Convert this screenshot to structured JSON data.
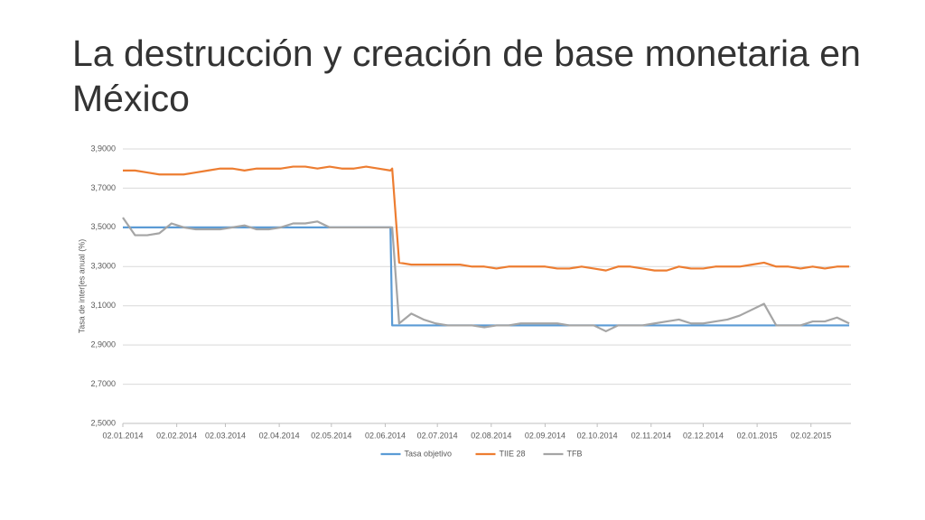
{
  "chart_data": {
    "type": "line",
    "title": "La destrucción y creación de base monetaria en México",
    "y_label": "Tasa de inter[es anual (%)",
    "x": [
      "02.01.2014",
      "09.01.2014",
      "16.01.2014",
      "23.01.2014",
      "30.01.2014",
      "06.02.2014",
      "13.02.2014",
      "20.02.2014",
      "27.02.2014",
      "06.03.2014",
      "13.03.2014",
      "20.03.2014",
      "27.03.2014",
      "03.04.2014",
      "10.04.2014",
      "17.04.2014",
      "24.04.2014",
      "01.05.2014",
      "08.05.2014",
      "15.05.2014",
      "22.05.2014",
      "29.05.2014",
      "05.06.2014",
      "06.06.2014",
      "10.06.2014",
      "17.06.2014",
      "24.06.2014",
      "01.07.2014",
      "08.07.2014",
      "15.07.2014",
      "22.07.2014",
      "29.07.2014",
      "05.08.2014",
      "12.08.2014",
      "19.08.2014",
      "26.08.2014",
      "02.09.2014",
      "09.09.2014",
      "16.09.2014",
      "23.09.2014",
      "30.09.2014",
      "07.10.2014",
      "14.10.2014",
      "21.10.2014",
      "28.10.2014",
      "04.11.2014",
      "11.11.2014",
      "18.11.2014",
      "25.11.2014",
      "02.12.2014",
      "09.12.2014",
      "16.12.2014",
      "23.12.2014",
      "30.12.2014",
      "06.01.2015",
      "13.01.2015",
      "20.01.2015",
      "27.01.2015",
      "03.02.2015",
      "10.02.2015",
      "17.02.2015",
      "24.02.2015"
    ],
    "series": [
      {
        "name": "Tasa objetivo",
        "color": "#5b9bd5",
        "values": [
          3.5,
          3.5,
          3.5,
          3.5,
          3.5,
          3.5,
          3.5,
          3.5,
          3.5,
          3.5,
          3.5,
          3.5,
          3.5,
          3.5,
          3.5,
          3.5,
          3.5,
          3.5,
          3.5,
          3.5,
          3.5,
          3.5,
          3.5,
          3.0,
          3.0,
          3.0,
          3.0,
          3.0,
          3.0,
          3.0,
          3.0,
          3.0,
          3.0,
          3.0,
          3.0,
          3.0,
          3.0,
          3.0,
          3.0,
          3.0,
          3.0,
          3.0,
          3.0,
          3.0,
          3.0,
          3.0,
          3.0,
          3.0,
          3.0,
          3.0,
          3.0,
          3.0,
          3.0,
          3.0,
          3.0,
          3.0,
          3.0,
          3.0,
          3.0,
          3.0,
          3.0,
          3.0
        ]
      },
      {
        "name": "TIIE 28",
        "color": "#ed7d31",
        "values": [
          3.79,
          3.79,
          3.78,
          3.77,
          3.77,
          3.77,
          3.78,
          3.79,
          3.8,
          3.8,
          3.79,
          3.8,
          3.8,
          3.8,
          3.81,
          3.81,
          3.8,
          3.81,
          3.8,
          3.8,
          3.81,
          3.8,
          3.79,
          3.8,
          3.32,
          3.31,
          3.31,
          3.31,
          3.31,
          3.31,
          3.3,
          3.3,
          3.29,
          3.3,
          3.3,
          3.3,
          3.3,
          3.29,
          3.29,
          3.3,
          3.29,
          3.28,
          3.3,
          3.3,
          3.29,
          3.28,
          3.28,
          3.3,
          3.29,
          3.29,
          3.3,
          3.3,
          3.3,
          3.31,
          3.32,
          3.3,
          3.3,
          3.29,
          3.3,
          3.29,
          3.3,
          3.3
        ]
      },
      {
        "name": "TFB",
        "color": "#a5a5a5",
        "values": [
          3.55,
          3.46,
          3.46,
          3.47,
          3.52,
          3.5,
          3.49,
          3.49,
          3.49,
          3.5,
          3.51,
          3.49,
          3.49,
          3.5,
          3.52,
          3.52,
          3.53,
          3.5,
          3.5,
          3.5,
          3.5,
          3.5,
          3.5,
          3.5,
          3.01,
          3.06,
          3.03,
          3.01,
          3.0,
          3.0,
          3.0,
          2.99,
          3.0,
          3.0,
          3.01,
          3.01,
          3.01,
          3.01,
          3.0,
          3.0,
          3.0,
          2.97,
          3.0,
          3.0,
          3.0,
          3.01,
          3.02,
          3.03,
          3.01,
          3.01,
          3.02,
          3.03,
          3.05,
          3.08,
          3.11,
          3.0,
          3.0,
          3.0,
          3.02,
          3.02,
          3.04,
          3.01
        ]
      }
    ],
    "xlim": [
      "02.01.2014",
      "25.02.2015"
    ],
    "xticks": [
      "02.01.2014",
      "02.02.2014",
      "02.03.2014",
      "02.04.2014",
      "02.05.2014",
      "02.06.2014",
      "02.07.2014",
      "02.08.2014",
      "02.09.2014",
      "02.10.2014",
      "02.11.2014",
      "02.12.2014",
      "02.01.2015",
      "02.02.2015"
    ],
    "ylim": [
      2.5,
      3.9
    ],
    "yticks": [
      {
        "value": 2.5,
        "label": "2,5000"
      },
      {
        "value": 2.7,
        "label": "2,7000"
      },
      {
        "value": 2.9,
        "label": "2,9000"
      },
      {
        "value": 3.1,
        "label": "3,1000"
      },
      {
        "value": 3.3,
        "label": "3,3000"
      },
      {
        "value": 3.5,
        "label": "3,5000"
      },
      {
        "value": 3.7,
        "label": "3,7000"
      },
      {
        "value": 3.9,
        "label": "3,9000"
      }
    ],
    "grid": true,
    "legend": "bottom"
  }
}
